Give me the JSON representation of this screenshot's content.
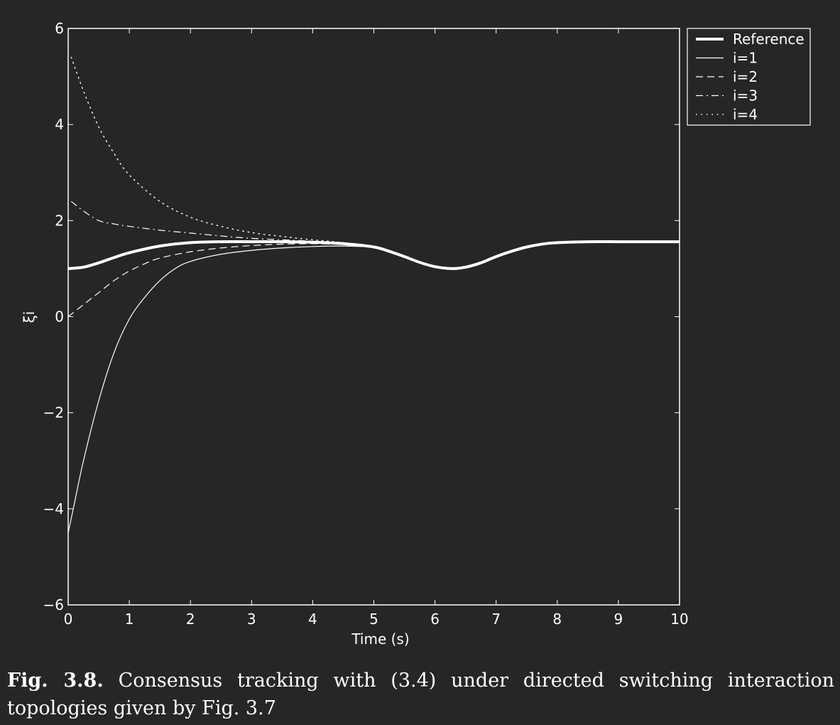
{
  "chart_data": {
    "type": "line",
    "xlabel": "Time (s)",
    "ylabel": "ξi",
    "xlim": [
      0,
      10
    ],
    "ylim": [
      -6,
      6
    ],
    "xticks": [
      "0",
      "1",
      "2",
      "3",
      "4",
      "5",
      "6",
      "7",
      "8",
      "9",
      "10"
    ],
    "yticks": [
      "6",
      "4",
      "2",
      "0",
      "−2",
      "−4",
      "−6"
    ],
    "xtick_values": [
      0,
      1,
      2,
      3,
      4,
      5,
      6,
      7,
      8,
      9,
      10
    ],
    "ytick_values": [
      6,
      4,
      2,
      0,
      -2,
      -4,
      -6
    ],
    "legend_position": "outside-top-right",
    "grid": false,
    "line_color": "#ffffff",
    "series": [
      {
        "name": "Reference",
        "style": "thick-solid",
        "x": [
          0,
          0.25,
          0.5,
          0.75,
          1,
          1.5,
          2,
          2.5,
          3,
          3.5,
          4,
          4.5,
          5,
          5.25,
          5.5,
          5.75,
          6,
          6.28,
          6.5,
          6.75,
          7,
          7.25,
          7.5,
          7.75,
          8,
          8.5,
          9,
          9.5,
          10
        ],
        "y": [
          1.0,
          1.03,
          1.12,
          1.23,
          1.33,
          1.47,
          1.54,
          1.56,
          1.56,
          1.56,
          1.55,
          1.52,
          1.45,
          1.36,
          1.25,
          1.13,
          1.04,
          1.0,
          1.03,
          1.12,
          1.25,
          1.36,
          1.45,
          1.51,
          1.54,
          1.56,
          1.56,
          1.56,
          1.56
        ]
      },
      {
        "name": "i=1",
        "style": "solid",
        "x": [
          0,
          0.1,
          0.25,
          0.5,
          0.75,
          1,
          1.25,
          1.5,
          1.75,
          2,
          2.5,
          3,
          3.5,
          4,
          4.5,
          5
        ],
        "y": [
          -4.5,
          -3.9,
          -3.0,
          -1.75,
          -0.75,
          -0.05,
          0.4,
          0.75,
          1.0,
          1.15,
          1.3,
          1.38,
          1.43,
          1.46,
          1.47,
          1.45
        ]
      },
      {
        "name": "i=2",
        "style": "dashed",
        "x": [
          0,
          0.25,
          0.5,
          0.75,
          1,
          1.25,
          1.5,
          2,
          2.5,
          3,
          3.5,
          4,
          4.5,
          5
        ],
        "y": [
          0.0,
          0.25,
          0.5,
          0.75,
          0.95,
          1.1,
          1.22,
          1.35,
          1.43,
          1.48,
          1.51,
          1.52,
          1.5,
          1.45
        ]
      },
      {
        "name": "i=3",
        "style": "dashdot",
        "x": [
          0.05,
          0.25,
          0.5,
          0.75,
          1,
          1.5,
          2,
          2.5,
          3,
          3.5,
          4,
          4.5,
          5
        ],
        "y": [
          2.4,
          2.2,
          2.0,
          1.93,
          1.88,
          1.8,
          1.74,
          1.68,
          1.63,
          1.6,
          1.57,
          1.53,
          1.45
        ]
      },
      {
        "name": "i=4",
        "style": "dotted",
        "x": [
          0.05,
          0.25,
          0.5,
          0.75,
          1,
          1.5,
          2,
          2.5,
          3,
          3.5,
          4,
          4.5,
          5
        ],
        "y": [
          5.4,
          4.7,
          3.95,
          3.4,
          2.95,
          2.4,
          2.07,
          1.88,
          1.75,
          1.67,
          1.6,
          1.54,
          1.45
        ]
      }
    ]
  },
  "caption": {
    "label": "Fig. 3.8.",
    "text": "Consensus tracking with (3.4) under directed switching interaction topologies given by Fig. 3.7"
  }
}
